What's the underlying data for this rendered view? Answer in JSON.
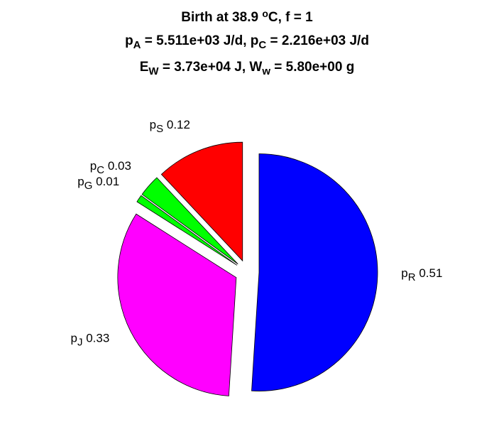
{
  "chart_data": {
    "type": "pie",
    "title": [
      [
        {
          "text": "Birth at 38.9 "
        },
        {
          "sup": "o"
        },
        {
          "text": "C, f = 1"
        }
      ],
      [
        {
          "text": "p"
        },
        {
          "sub": "A"
        },
        {
          "text": " = 5.511e+03 J/d, p"
        },
        {
          "sub": "C"
        },
        {
          "text": " = 2.216e+03 J/d"
        }
      ],
      [
        {
          "text": "E"
        },
        {
          "sub": "W"
        },
        {
          "text": " = 3.73e+04 J, W"
        },
        {
          "sub": "w"
        },
        {
          "text": " = 5.80e+00 g"
        }
      ]
    ],
    "category_prefix": "p",
    "categories": [
      "R",
      "J",
      "G",
      "C",
      "S"
    ],
    "values": [
      0.51,
      0.33,
      0.01,
      0.03,
      0.12
    ],
    "colors": [
      "#0000ff",
      "#ff00ff",
      "#00ff00",
      "#00ff00",
      "#ff0000"
    ],
    "explode": true
  }
}
